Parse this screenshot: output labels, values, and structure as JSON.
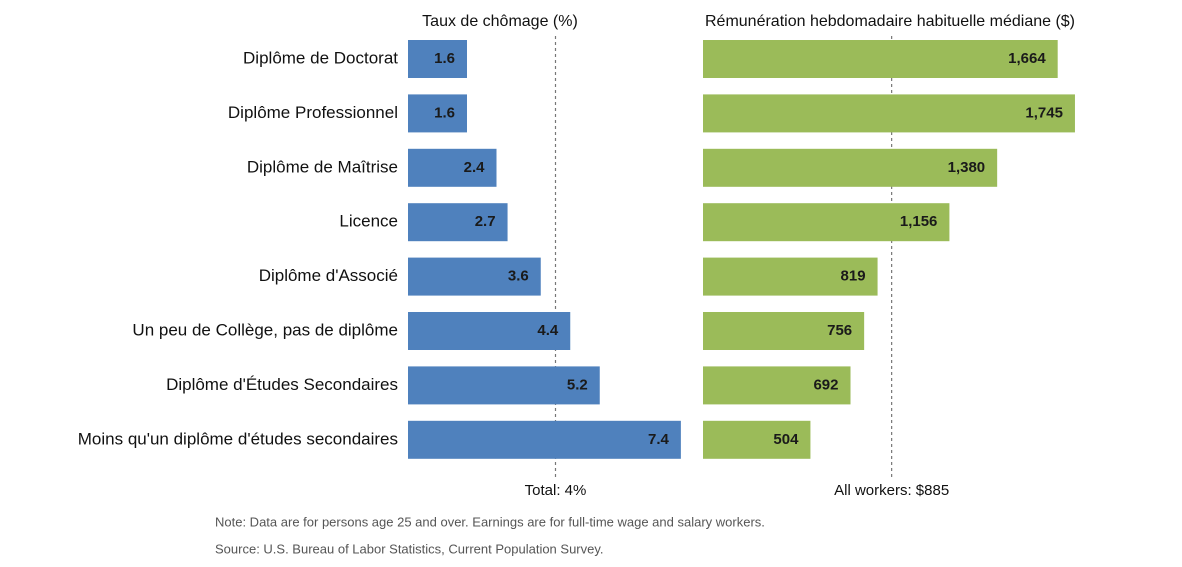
{
  "chart_data": [
    {
      "type": "bar",
      "orientation": "horizontal",
      "title": "Taux de chômage (%)",
      "categories": [
        "Diplôme de Doctorat",
        "Diplôme Professionnel",
        "Diplôme de Maîtrise",
        "Licence",
        "Diplôme d'Associé",
        "Un peu de Collège, pas de diplôme",
        "Diplôme d'Études Secondaires",
        "Moins qu'un diplôme d'études secondaires"
      ],
      "values": [
        1.6,
        1.6,
        2.4,
        2.7,
        3.6,
        4.4,
        5.2,
        7.4
      ],
      "color": "#4f81bd",
      "xlim": [
        0,
        8
      ],
      "reference_line": {
        "value": 4,
        "label": "Total: 4%"
      }
    },
    {
      "type": "bar",
      "orientation": "horizontal",
      "title": "Rémunération hebdomadaire habituelle médiane ($)",
      "values": [
        1664,
        1745,
        1380,
        1156,
        819,
        756,
        692,
        504
      ],
      "value_labels": [
        "1,664",
        "1,745",
        "1,380",
        "1,156",
        "819",
        "756",
        "692",
        "504"
      ],
      "color": "#9bbb59",
      "xlim": [
        0,
        1900
      ],
      "reference_line": {
        "value": 885,
        "label": "All workers: $885"
      }
    }
  ],
  "note": "Note: Data are for persons age 25 and over. Earnings are for full-time wage and salary workers.",
  "source": "Source: U.S. Bureau of Labor Statistics, Current Population Survey."
}
